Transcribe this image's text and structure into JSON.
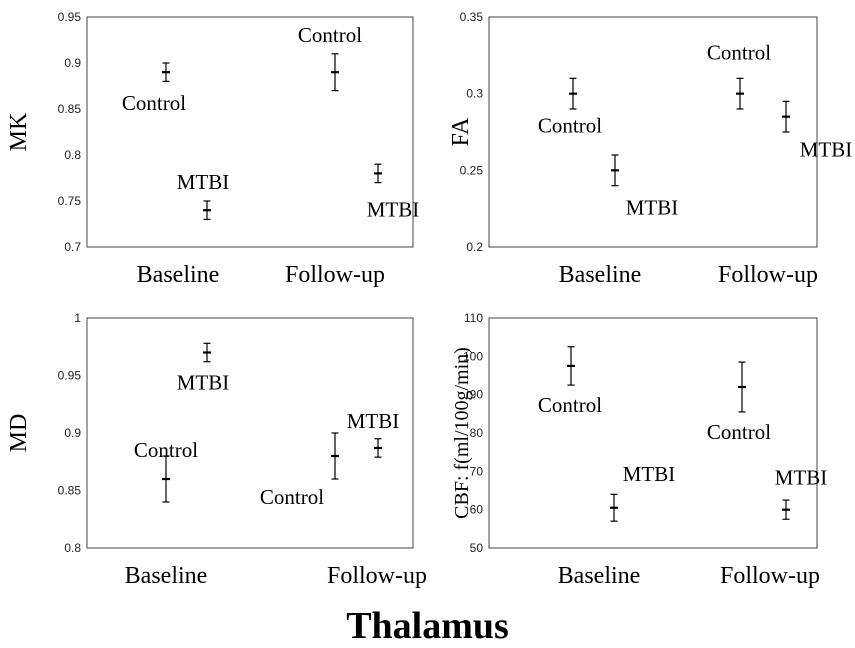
{
  "figure_title": "Thalamus",
  "chart_data": [
    {
      "type": "scatter",
      "panel": "MK",
      "ylabel": "MK",
      "ylim": [
        0.7,
        0.95
      ],
      "yticks": [
        "0.7",
        "0.75",
        "0.8",
        "0.85",
        "0.9",
        "0.95"
      ],
      "categories": [
        "Baseline",
        "Follow-up"
      ],
      "series": [
        {
          "name": "Control",
          "values": [
            0.89,
            0.89
          ],
          "errors": [
            0.01,
            0.02
          ]
        },
        {
          "name": "MTBI",
          "values": [
            0.74,
            0.78
          ],
          "errors": [
            0.01,
            0.01
          ]
        }
      ],
      "annotations": [
        {
          "text": "Control",
          "category": 0,
          "series": 0
        },
        {
          "text": "MTBI",
          "category": 0,
          "series": 1
        },
        {
          "text": "Control",
          "category": 1,
          "series": 0
        },
        {
          "text": "MTBI",
          "category": 1,
          "series": 1
        }
      ]
    },
    {
      "type": "scatter",
      "panel": "FA",
      "ylabel": "FA",
      "ylim": [
        0.2,
        0.35
      ],
      "yticks": [
        "0.2",
        "0.25",
        "0.3",
        "0.35"
      ],
      "categories": [
        "Baseline",
        "Follow-up"
      ],
      "series": [
        {
          "name": "Control",
          "values": [
            0.3,
            0.3
          ],
          "errors": [
            0.01,
            0.01
          ]
        },
        {
          "name": "MTBI",
          "values": [
            0.25,
            0.285
          ],
          "errors": [
            0.01,
            0.01
          ]
        }
      ],
      "annotations": [
        {
          "text": "Control",
          "category": 0,
          "series": 0
        },
        {
          "text": "MTBI",
          "category": 0,
          "series": 1
        },
        {
          "text": "Control",
          "category": 1,
          "series": 0
        },
        {
          "text": "MTBI",
          "category": 1,
          "series": 1
        }
      ]
    },
    {
      "type": "scatter",
      "panel": "MD",
      "ylabel": "MD",
      "ylim": [
        0.8,
        1.0
      ],
      "yticks": [
        "0.8",
        "0.85",
        "0.9",
        "0.95",
        "1"
      ],
      "categories": [
        "Baseline",
        "Follow-up"
      ],
      "series": [
        {
          "name": "Control",
          "values": [
            0.86,
            0.88
          ],
          "errors": [
            0.02,
            0.02
          ]
        },
        {
          "name": "MTBI",
          "values": [
            0.97,
            0.887
          ],
          "errors": [
            0.008,
            0.008
          ]
        }
      ],
      "annotations": [
        {
          "text": "Control",
          "category": 0,
          "series": 0
        },
        {
          "text": "MTBI",
          "category": 0,
          "series": 1
        },
        {
          "text": "Control",
          "category": 1,
          "series": 0
        },
        {
          "text": "MTBI",
          "category": 1,
          "series": 1
        }
      ]
    },
    {
      "type": "scatter",
      "panel": "CBF",
      "ylabel": "CBF: f(ml/100g/min)",
      "ylim": [
        50,
        110
      ],
      "yticks": [
        "50",
        "60",
        "70",
        "80",
        "90",
        "100",
        "110"
      ],
      "categories": [
        "Baseline",
        "Follow-up"
      ],
      "series": [
        {
          "name": "Control",
          "values": [
            97.5,
            92
          ],
          "errors": [
            5,
            6.5
          ]
        },
        {
          "name": "MTBI",
          "values": [
            60.5,
            60
          ],
          "errors": [
            3.5,
            2.5
          ]
        }
      ],
      "annotations": [
        {
          "text": "Control",
          "category": 0,
          "series": 0
        },
        {
          "text": "MTBI",
          "category": 0,
          "series": 1
        },
        {
          "text": "Control",
          "category": 1,
          "series": 0
        },
        {
          "text": "MTBI",
          "category": 1,
          "series": 1
        }
      ]
    }
  ]
}
